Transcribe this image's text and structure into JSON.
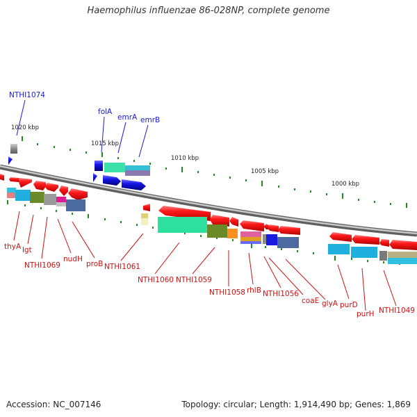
{
  "title": "Haemophilus influenzae 86-028NP, complete genome",
  "footer": {
    "accession": "Accession: NC_007146",
    "summary": "Topology: circular; Length: 1,914,490 bp; Genes: 1,869"
  },
  "colors": {
    "backbone": "#8c8c8c",
    "forward_gene": "#ff1a1a",
    "label_top": "#1a1acc",
    "label_bottom": "#cc1111",
    "tick_minor": "#1f8a1f",
    "tick_major": "#2a8a2a"
  },
  "kbp_labels": [
    "1020 kbp",
    "1015 kbp",
    "1010 kbp",
    "1005 kbp",
    "1000 kbp"
  ],
  "top_labels": [
    "NTHI1074",
    "folA",
    "emrA",
    "emrB"
  ],
  "bottom_labels": [
    "thyA",
    "lgt",
    "NTHI1069",
    "nudH",
    "proB",
    "NTHI1061",
    "NTHI1060",
    "NTHI1059",
    "NTHI1058",
    "rhlB",
    "NTHI1056",
    "coaE",
    "glyA",
    "purD",
    "purH",
    "NTHI1049"
  ]
}
